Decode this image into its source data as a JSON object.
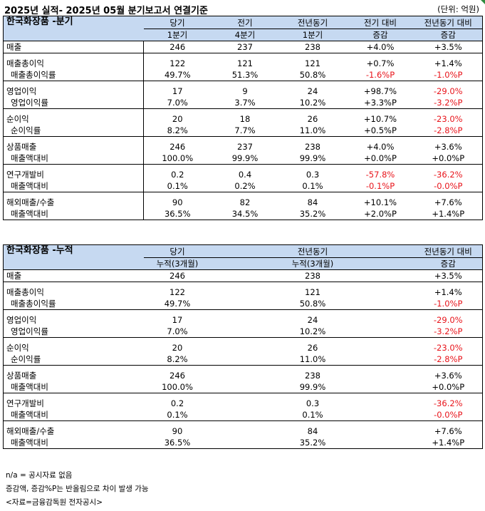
{
  "header": {
    "title": "2025년 실적- 2025년 05월 분기보고서 연결기준",
    "unit": "(단위: 억원)"
  },
  "quarterly": {
    "section_title": "한국화장품 -분기",
    "col_headers": [
      [
        "당기",
        "1분기"
      ],
      [
        "전기",
        "4분기"
      ],
      [
        "전년동기",
        "1분기"
      ],
      [
        "전기 대비",
        "증감"
      ],
      [
        "전년동기 대비",
        "증감"
      ]
    ],
    "rows": [
      {
        "label": "매출",
        "values": [
          "246",
          "237",
          "238",
          "+4.0%",
          "+3.5%"
        ]
      },
      {
        "label": "매출총이익",
        "values": [
          "122",
          "121",
          "121",
          "+0.7%",
          "+1.4%"
        ]
      },
      {
        "label": "매출총이익률",
        "values": [
          "49.7%",
          "51.3%",
          "50.8%",
          "-1.6%P",
          "-1.0%P"
        ]
      },
      {
        "label": "영업이익",
        "values": [
          "17",
          "9",
          "24",
          "+98.7%",
          "-29.0%"
        ]
      },
      {
        "label": "영업이익률",
        "values": [
          "7.0%",
          "3.7%",
          "10.2%",
          "+3.3%P",
          "-3.2%P"
        ]
      },
      {
        "label": "순이익",
        "values": [
          "20",
          "18",
          "26",
          "+10.7%",
          "-23.0%"
        ]
      },
      {
        "label": "순이익률",
        "values": [
          "8.2%",
          "7.7%",
          "11.0%",
          "+0.5%P",
          "-2.8%P"
        ]
      },
      {
        "label": "상품매출",
        "values": [
          "246",
          "237",
          "238",
          "+4.0%",
          "+3.6%"
        ]
      },
      {
        "label": "매출액대비",
        "values": [
          "100.0%",
          "99.9%",
          "99.9%",
          "+0.0%P",
          "+0.0%P"
        ]
      },
      {
        "label": "연구개발비",
        "values": [
          "0.2",
          "0.4",
          "0.3",
          "-57.8%",
          "-36.2%"
        ]
      },
      {
        "label": "매출액대비",
        "values": [
          "0.1%",
          "0.2%",
          "0.1%",
          "-0.1%P",
          "-0.0%P"
        ]
      },
      {
        "label": "해외매출/수출",
        "values": [
          "90",
          "82",
          "84",
          "+10.1%",
          "+7.6%"
        ]
      },
      {
        "label": "매출액대비",
        "values": [
          "36.5%",
          "34.5%",
          "35.2%",
          "+2.0%P",
          "+1.4%P"
        ]
      }
    ]
  },
  "cumulative": {
    "section_title": "한국화장품 -누적",
    "col_headers": [
      [
        "당기",
        "누적(3개월)"
      ],
      [
        "전년동기",
        "누적(3개월)"
      ],
      [
        "전년동기 대비",
        "증감"
      ]
    ],
    "rows": [
      {
        "label": "매출",
        "values": [
          "246",
          "238",
          "+3.5%"
        ]
      },
      {
        "label": "매출총이익",
        "values": [
          "122",
          "121",
          "+1.4%"
        ]
      },
      {
        "label": "매출총이익률",
        "values": [
          "49.7%",
          "50.8%",
          "-1.0%P"
        ]
      },
      {
        "label": "영업이익",
        "values": [
          "17",
          "24",
          "-29.0%"
        ]
      },
      {
        "label": "영업이익률",
        "values": [
          "7.0%",
          "10.2%",
          "-3.2%P"
        ]
      },
      {
        "label": "순이익",
        "values": [
          "20",
          "26",
          "-23.0%"
        ]
      },
      {
        "label": "순이익률",
        "values": [
          "8.2%",
          "11.0%",
          "-2.8%P"
        ]
      },
      {
        "label": "상품매출",
        "values": [
          "246",
          "238",
          "+3.6%"
        ]
      },
      {
        "label": "매출액대비",
        "values": [
          "100.0%",
          "99.9%",
          "+0.0%P"
        ]
      },
      {
        "label": "연구개발비",
        "values": [
          "0.2",
          "0.3",
          "-36.2%"
        ]
      },
      {
        "label": "매출액대비",
        "values": [
          "0.1%",
          "0.1%",
          "-0.0%P"
        ]
      },
      {
        "label": "해외매출/수출",
        "values": [
          "90",
          "84",
          "+7.6%"
        ]
      },
      {
        "label": "매출액대비",
        "values": [
          "36.5%",
          "35.2%",
          "+1.4%P"
        ]
      }
    ]
  },
  "notes": [
    "n/a = 공시자료 없음",
    "증감액, 증감%P는 반올림으로 차이 발생 가능",
    "<자료=금융감독원 전자공시>"
  ],
  "colors": {
    "header_bg": "#c6d9f1",
    "negative": "#e8141b",
    "corner_marker": "#2e8b3e"
  }
}
